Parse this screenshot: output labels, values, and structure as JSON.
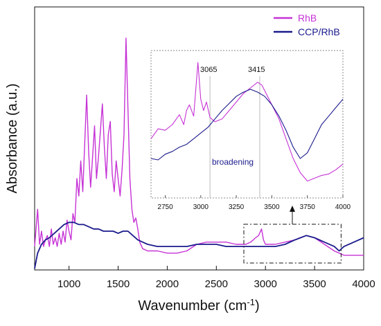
{
  "chart_data": [
    {
      "type": "line",
      "xlabel": "Wavenumber (cm",
      "xlabel_superscript": "-1",
      "xlabel_suffix": ")",
      "ylabel": "Absorbance (a.u.)",
      "xlim": [
        650,
        4000
      ],
      "ylim": [
        0,
        1
      ],
      "x_ticks": [
        1000,
        1500,
        2000,
        2500,
        3000,
        3500,
        4000
      ],
      "x_tick_labels": [
        "1000",
        "1500",
        "2000",
        "2500",
        "3000",
        "3500",
        "4000"
      ],
      "y_ticks_shown": false,
      "grid": false,
      "legend_position": "top-right",
      "series": [
        {
          "name": "RhB",
          "color": "#c632d6",
          "x": [
            650,
            680,
            700,
            720,
            740,
            760,
            780,
            800,
            820,
            840,
            860,
            880,
            900,
            920,
            940,
            960,
            980,
            1000,
            1020,
            1040,
            1060,
            1080,
            1100,
            1120,
            1140,
            1160,
            1180,
            1200,
            1220,
            1240,
            1260,
            1280,
            1300,
            1320,
            1340,
            1360,
            1380,
            1400,
            1420,
            1440,
            1460,
            1480,
            1500,
            1520,
            1540,
            1560,
            1580,
            1600,
            1620,
            1640,
            1660,
            1680,
            1700,
            1720,
            1750,
            1800,
            1900,
            2000,
            2100,
            2200,
            2300,
            2400,
            2500,
            2600,
            2700,
            2800,
            2850,
            2900,
            2930,
            2960,
            2980,
            3000,
            3030,
            3065,
            3100,
            3200,
            3300,
            3350,
            3415,
            3500,
            3600,
            3700,
            3800,
            3900,
            4000
          ],
          "y": [
            0.05,
            0.22,
            0.06,
            0.12,
            0.05,
            0.08,
            0.1,
            0.05,
            0.13,
            0.06,
            0.09,
            0.05,
            0.11,
            0.06,
            0.12,
            0.07,
            0.17,
            0.12,
            0.08,
            0.2,
            0.16,
            0.36,
            0.28,
            0.44,
            0.3,
            0.52,
            0.74,
            0.48,
            0.32,
            0.46,
            0.6,
            0.36,
            0.46,
            0.58,
            0.7,
            0.5,
            0.36,
            0.56,
            0.62,
            0.38,
            0.3,
            0.44,
            0.36,
            0.28,
            0.4,
            0.56,
            1.0,
            0.68,
            0.36,
            0.22,
            0.16,
            0.18,
            0.13,
            0.07,
            0.04,
            0.03,
            0.03,
            0.02,
            0.02,
            0.03,
            0.06,
            0.07,
            0.07,
            0.07,
            0.06,
            0.06,
            0.07,
            0.09,
            0.1,
            0.13,
            0.08,
            0.06,
            0.06,
            0.06,
            0.06,
            0.07,
            0.08,
            0.09,
            0.1,
            0.09,
            0.06,
            0.03,
            0.01,
            0.01,
            0.01
          ]
        },
        {
          "name": "CCP/RhB",
          "color": "#1a1a8c",
          "x": [
            650,
            680,
            720,
            760,
            800,
            850,
            900,
            950,
            1000,
            1050,
            1100,
            1150,
            1200,
            1250,
            1300,
            1350,
            1400,
            1450,
            1500,
            1550,
            1600,
            1650,
            1700,
            1750,
            1800,
            1900,
            2000,
            2100,
            2200,
            2300,
            2400,
            2500,
            2600,
            2700,
            2800,
            2900,
            3000,
            3065,
            3100,
            3200,
            3300,
            3415,
            3500,
            3600,
            3700,
            3750,
            3800,
            3900,
            4000
          ],
          "y": [
            -0.05,
            0.02,
            0.06,
            0.08,
            0.09,
            0.11,
            0.13,
            0.15,
            0.16,
            0.16,
            0.15,
            0.15,
            0.14,
            0.13,
            0.13,
            0.12,
            0.12,
            0.12,
            0.11,
            0.12,
            0.12,
            0.1,
            0.08,
            0.07,
            0.06,
            0.05,
            0.05,
            0.05,
            0.05,
            0.06,
            0.06,
            0.06,
            0.05,
            0.05,
            0.05,
            0.05,
            0.05,
            0.05,
            0.05,
            0.06,
            0.08,
            0.1,
            0.09,
            0.07,
            0.05,
            0.03,
            0.05,
            0.07,
            0.09
          ]
        }
      ]
    },
    {
      "type": "line",
      "role": "inset",
      "xlim": [
        2650,
        4000
      ],
      "x_ticks": [
        2750,
        3000,
        3250,
        3500,
        3750,
        4000
      ],
      "x_tick_labels": [
        "2750",
        "3000",
        "3250",
        "3500",
        "3750",
        "4000"
      ],
      "y_ticks_shown": false,
      "annotations": [
        {
          "text": "3065",
          "x": 3065
        },
        {
          "text": "3415",
          "x": 3415
        },
        {
          "text": "broadening"
        }
      ],
      "zoom_region_main_x": [
        2780,
        3770
      ],
      "series": [
        {
          "name": "RhB",
          "color": "#c632d6",
          "x": [
            2650,
            2700,
            2750,
            2800,
            2850,
            2880,
            2900,
            2920,
            2950,
            2980,
            3000,
            3020,
            3040,
            3065,
            3100,
            3150,
            3200,
            3250,
            3300,
            3350,
            3400,
            3430,
            3460,
            3500,
            3550,
            3600,
            3650,
            3700,
            3750,
            3800,
            3850,
            3900,
            3950,
            4000
          ],
          "y": [
            0.4,
            0.47,
            0.46,
            0.5,
            0.57,
            0.5,
            0.6,
            0.64,
            0.56,
            0.94,
            0.68,
            0.6,
            0.66,
            0.55,
            0.52,
            0.54,
            0.6,
            0.66,
            0.72,
            0.76,
            0.8,
            0.78,
            0.72,
            0.64,
            0.54,
            0.4,
            0.26,
            0.16,
            0.1,
            0.12,
            0.14,
            0.15,
            0.18,
            0.22
          ]
        },
        {
          "name": "CCP/RhB",
          "color": "#1a1a8c",
          "x": [
            2650,
            2700,
            2750,
            2800,
            2850,
            2900,
            2950,
            3000,
            3050,
            3100,
            3150,
            3200,
            3250,
            3300,
            3350,
            3400,
            3450,
            3500,
            3550,
            3600,
            3650,
            3700,
            3750,
            3800,
            3850,
            3900,
            3950,
            4000
          ],
          "y": [
            0.26,
            0.25,
            0.29,
            0.31,
            0.34,
            0.36,
            0.4,
            0.44,
            0.48,
            0.54,
            0.6,
            0.65,
            0.7,
            0.73,
            0.75,
            0.73,
            0.7,
            0.64,
            0.56,
            0.46,
            0.34,
            0.26,
            0.3,
            0.4,
            0.5,
            0.56,
            0.62,
            0.68
          ]
        }
      ]
    }
  ]
}
